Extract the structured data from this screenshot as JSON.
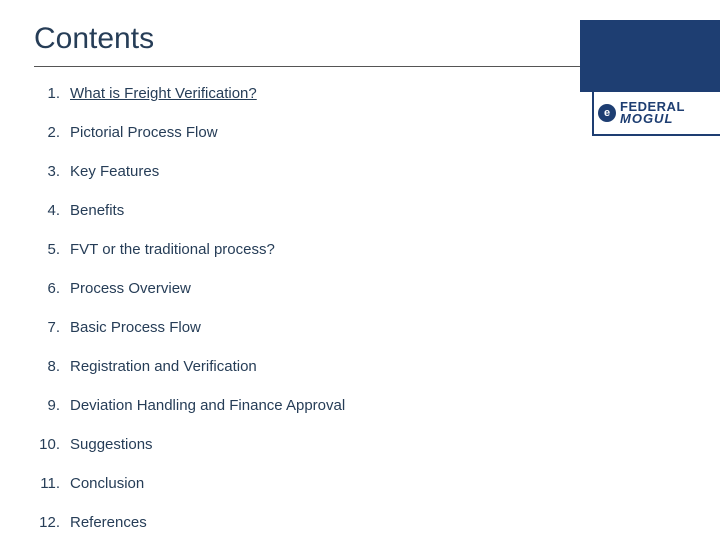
{
  "title": "Contents",
  "colors": {
    "heading": "#263d57",
    "text": "#263d57",
    "brand": "#1e3e72",
    "divider": "#555555",
    "background": "#ffffff"
  },
  "typography": {
    "title_fontsize": 30,
    "item_fontsize": 15,
    "font_family": "Arial"
  },
  "toc": [
    {
      "num": "1.",
      "label": "What is Freight Verification?",
      "underlined": true
    },
    {
      "num": "2.",
      "label": "Pictorial Process Flow",
      "underlined": false
    },
    {
      "num": "3.",
      "label": "Key Features",
      "underlined": false
    },
    {
      "num": "4.",
      "label": "Benefits",
      "underlined": false
    },
    {
      "num": "5.",
      "label": "FVT or the traditional process?",
      "underlined": false
    },
    {
      "num": "6.",
      "label": "Process Overview",
      "underlined": false
    },
    {
      "num": "7.",
      "label": "Basic Process Flow",
      "underlined": false
    },
    {
      "num": "8.",
      "label": "Registration and Verification",
      "underlined": false
    },
    {
      "num": "9.",
      "label": "Deviation Handling and Finance Approval",
      "underlined": false
    },
    {
      "num": "10.",
      "label": "Suggestions",
      "underlined": false
    },
    {
      "num": "11.",
      "label": "Conclusion",
      "underlined": false
    },
    {
      "num": "12.",
      "label": "References",
      "underlined": false
    }
  ],
  "logo": {
    "badge": "e",
    "line1": "FEDERAL",
    "line2": "MOGUL"
  }
}
